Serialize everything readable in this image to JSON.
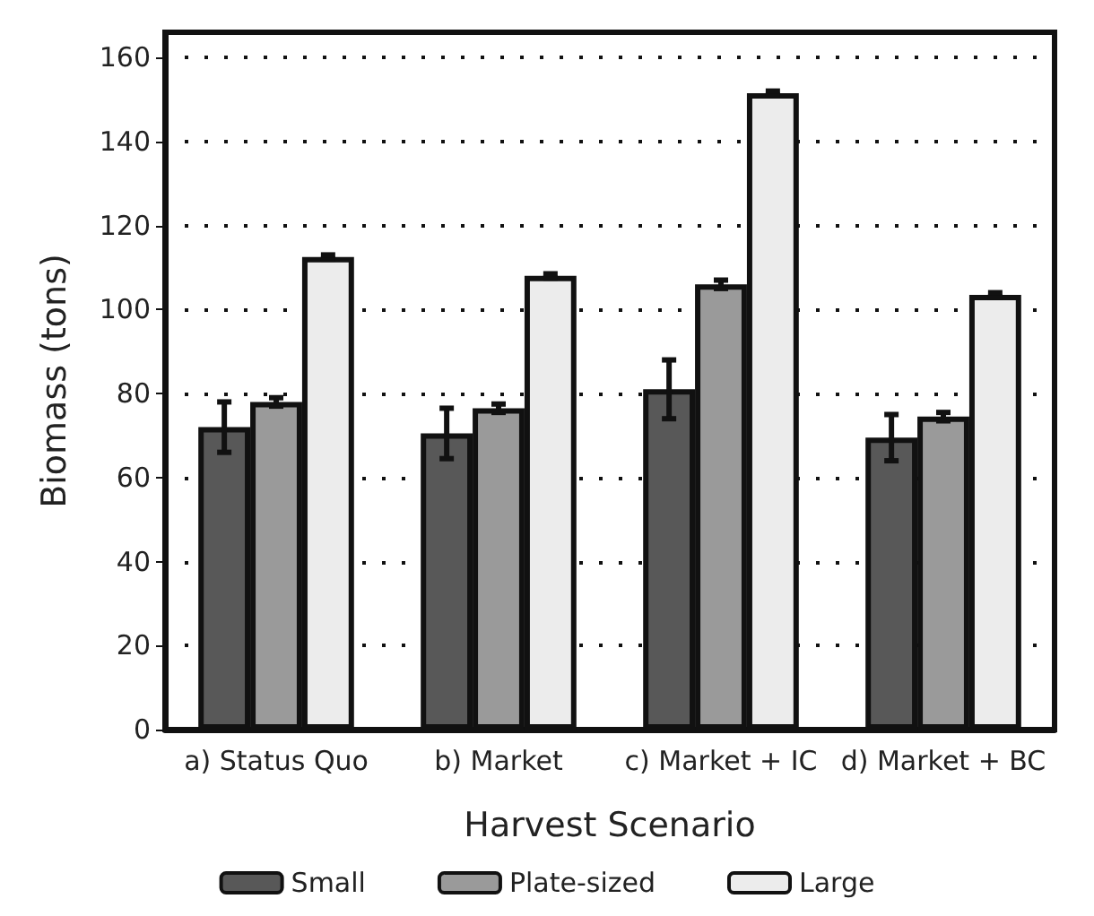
{
  "chart_data": {
    "type": "bar",
    "xlabel": "Harvest Scenario",
    "ylabel": "Biomass (tons)",
    "categories": [
      "a) Status Quo",
      "b) Market",
      "c) Market + IC",
      "d) Market + BC"
    ],
    "series": [
      {
        "name": "Small",
        "color": "#585858",
        "values": [
          72,
          70.5,
          81,
          69.5
        ],
        "errors": [
          6,
          6,
          7,
          5.5
        ]
      },
      {
        "name": "Plate-sized",
        "color": "#9a9a9a",
        "values": [
          78,
          76.5,
          106,
          74.5
        ],
        "errors": [
          1,
          1,
          1,
          1
        ]
      },
      {
        "name": "Large",
        "color": "#ececec",
        "values": [
          112.5,
          108,
          151.5,
          103.5
        ],
        "errors": [
          0.5,
          0.5,
          0.5,
          0.5
        ]
      }
    ],
    "ylim": [
      0,
      166
    ],
    "yticks": [
      0,
      20,
      40,
      60,
      80,
      100,
      120,
      140,
      160
    ],
    "grid": "y",
    "legend": "bottom"
  }
}
